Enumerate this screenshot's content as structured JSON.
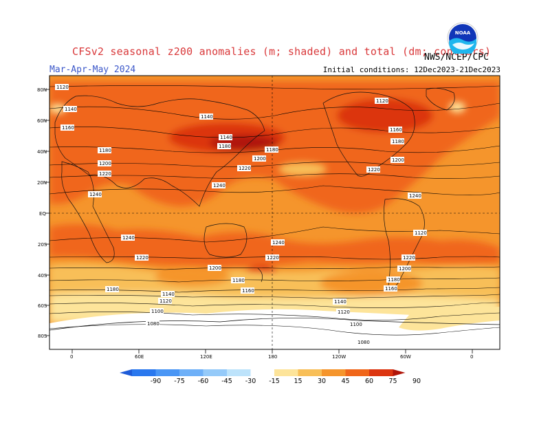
{
  "header": {
    "title": "CFSv2 seasonal z200 anomalies (m; shaded) and total (dm; contours)",
    "season": "Mar-Apr-May 2024",
    "initial_conditions": "Initial conditions: 12Dec2023-21Dec2023",
    "agency": "NWS/NCEP/CPC",
    "logo_text": "NOAA"
  },
  "map": {
    "lat_labels": [
      "80N",
      "60N",
      "40N",
      "20N",
      "EQ",
      "20S",
      "40S",
      "60S",
      "80S"
    ],
    "lon_labels": [
      "0",
      "60E",
      "120E",
      "180",
      "120W",
      "60W",
      "0"
    ],
    "contour_labels": [
      "1120",
      "1140",
      "1160",
      "1180",
      "1200",
      "1220",
      "1240",
      "1240",
      "1120",
      "1140",
      "1160",
      "1180",
      "1200",
      "1220",
      "1240",
      "1140",
      "1180",
      "1180",
      "1200",
      "1220",
      "1240",
      "1220",
      "1220",
      "1200",
      "1180",
      "1180",
      "1160",
      "1140",
      "1120",
      "1100",
      "1080",
      "1240",
      "1220",
      "1200",
      "1180",
      "1160",
      "1140",
      "1120",
      "1100",
      "1080",
      "1120",
      "1140"
    ]
  },
  "legend": {
    "ticks": [
      "-90",
      "-75",
      "-60",
      "-45",
      "-30",
      "-15",
      "15",
      "30",
      "45",
      "60",
      "75",
      "90"
    ],
    "colors": {
      "lt_-90": "#1e5bd8",
      "-90_-75": "#2a78ee",
      "-75_-60": "#4a96f5",
      "-60_-45": "#6eb0f8",
      "-45_-30": "#95caf9",
      "-30_-15": "#bde3fb",
      "-15_15": "#ffffff",
      "15_30": "#fde49a",
      "30_45": "#f8bf58",
      "45_60": "#f5952c",
      "60_75": "#f0661a",
      "75_90": "#dc3510",
      "gt_90": "#b01408"
    }
  }
}
